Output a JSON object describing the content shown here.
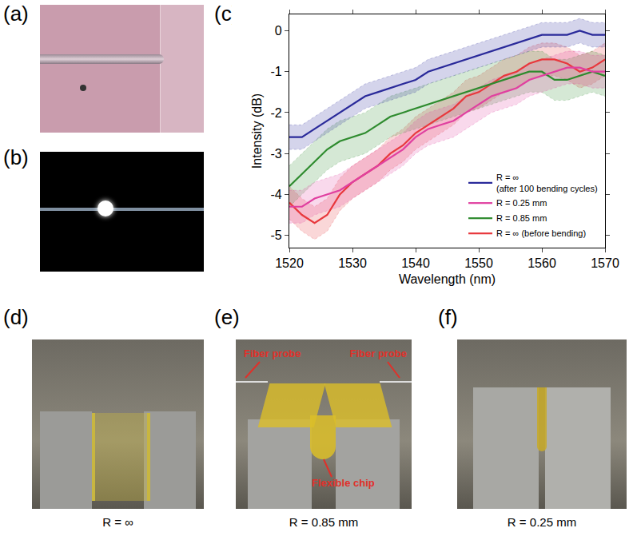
{
  "figure": {
    "panel_labels": [
      "(a)",
      "(b)",
      "(c)",
      "(d)",
      "(e)",
      "(f)"
    ],
    "photo_captions": [
      "R = ∞",
      "R = 0.85 mm",
      "R = 0.25 mm"
    ],
    "callouts": [
      "Fiber probe",
      "Fiber probe",
      "Flexible chip"
    ]
  },
  "chart_data": {
    "type": "line",
    "x_label": "Wavelength (nm)",
    "y_label": "Intensity (dB)",
    "x": [
      1520,
      1522,
      1524,
      1526,
      1528,
      1530,
      1532,
      1534,
      1536,
      1538,
      1540,
      1542,
      1544,
      1546,
      1548,
      1550,
      1552,
      1554,
      1556,
      1558,
      1560,
      1562,
      1564,
      1566,
      1568,
      1570
    ],
    "xlim": [
      1520,
      1570
    ],
    "xticks": [
      1520,
      1530,
      1540,
      1550,
      1560,
      1570
    ],
    "ylim": [
      -5.3,
      0.4
    ],
    "yticks": [
      -5,
      -4,
      -3,
      -2,
      -1,
      0
    ],
    "grid": false,
    "legend": "bottom right",
    "series": [
      {
        "name": "R = ∞ (before bending)",
        "color": "#e8383d",
        "error": 0.4,
        "values": [
          -4.2,
          -4.5,
          -4.7,
          -4.5,
          -4.0,
          -3.7,
          -3.5,
          -3.3,
          -3.0,
          -2.8,
          -2.5,
          -2.3,
          -2.1,
          -1.9,
          -1.6,
          -1.5,
          -1.3,
          -1.1,
          -1.0,
          -0.8,
          -0.7,
          -0.7,
          -0.8,
          -1.0,
          -0.9,
          -0.7
        ]
      },
      {
        "name": "R = 0.85 mm",
        "color": "#2e8b2e",
        "error": 0.5,
        "values": [
          -3.8,
          -3.5,
          -3.2,
          -2.9,
          -2.7,
          -2.6,
          -2.5,
          -2.3,
          -2.1,
          -2.0,
          -1.9,
          -1.8,
          -1.7,
          -1.6,
          -1.5,
          -1.4,
          -1.3,
          -1.2,
          -1.1,
          -1.0,
          -1.0,
          -1.2,
          -1.2,
          -1.1,
          -1.0,
          -1.1
        ]
      },
      {
        "name": "R = 0.25 mm",
        "color": "#e040a0",
        "error": 0.4,
        "values": [
          -4.3,
          -4.3,
          -4.1,
          -4.0,
          -3.9,
          -3.7,
          -3.5,
          -3.3,
          -3.1,
          -2.9,
          -2.6,
          -2.4,
          -2.3,
          -2.2,
          -2.0,
          -1.8,
          -1.6,
          -1.5,
          -1.4,
          -1.2,
          -1.1,
          -1.0,
          -0.9,
          -0.9,
          -1.0,
          -1.0
        ]
      },
      {
        "name": "R = ∞\n(after 100 bending cycles)",
        "color": "#2a2a9a",
        "error": 0.3,
        "values": [
          -2.6,
          -2.6,
          -2.4,
          -2.2,
          -2.0,
          -1.8,
          -1.6,
          -1.5,
          -1.4,
          -1.3,
          -1.2,
          -1.0,
          -0.9,
          -0.8,
          -0.7,
          -0.6,
          -0.5,
          -0.4,
          -0.3,
          -0.2,
          -0.1,
          -0.1,
          -0.1,
          0.0,
          -0.1,
          -0.1
        ]
      }
    ]
  }
}
